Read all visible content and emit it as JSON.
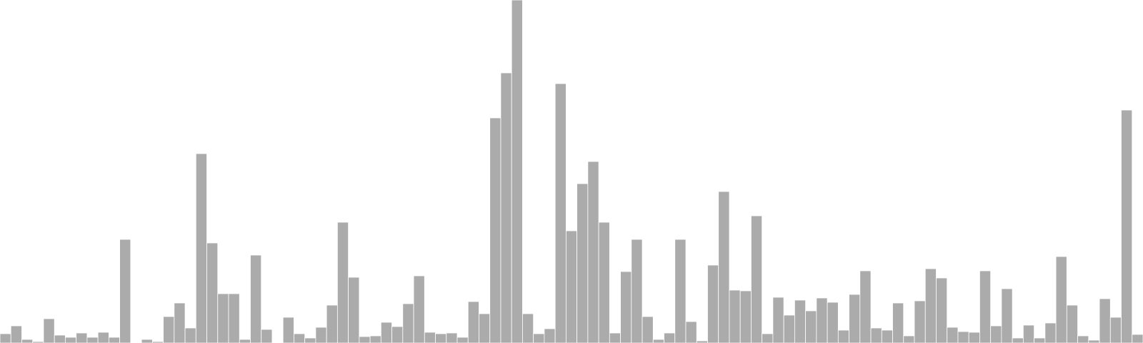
{
  "colors": {
    "background": "#ffffff",
    "bar_fill": "#ababab",
    "bar_stroke": "#ffffff"
  },
  "chart_data": {
    "type": "bar",
    "title": "",
    "xlabel": "",
    "ylabel": "",
    "grid": false,
    "legend": "none",
    "ylim": [
      0,
      480
    ],
    "values": [
      13,
      24,
      5,
      2,
      34,
      11,
      8,
      14,
      8,
      15,
      8,
      145,
      0,
      5,
      2,
      37,
      56,
      21,
      265,
      140,
      69,
      69,
      5,
      123,
      19,
      0,
      36,
      13,
      7,
      22,
      53,
      169,
      92,
      9,
      10,
      29,
      23,
      55,
      94,
      15,
      13,
      14,
      8,
      58,
      41,
      315,
      378,
      480,
      41,
      13,
      20,
      363,
      157,
      223,
      254,
      169,
      14,
      100,
      145,
      37,
      5,
      14,
      145,
      30,
      3,
      109,
      212,
      74,
      73,
      178,
      13,
      64,
      39,
      60,
      45,
      63,
      57,
      18,
      68,
      101,
      21,
      18,
      56,
      10,
      59,
      104,
      91,
      22,
      16,
      15,
      101,
      24,
      76,
      7,
      25,
      7,
      28,
      121,
      53,
      10,
      4,
      62,
      36,
      326,
      12
    ]
  }
}
